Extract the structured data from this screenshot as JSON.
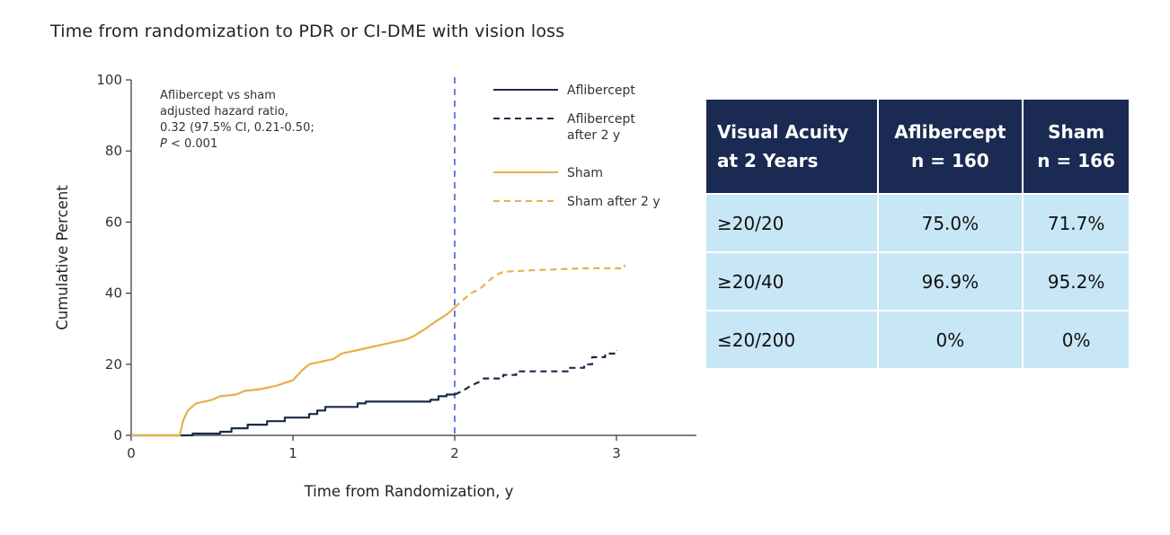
{
  "page_title": "Time from randomization to PDR or CI-DME with vision loss",
  "chart_data": {
    "type": "line",
    "xlabel": "Time from Randomization, y",
    "ylabel": "Cumulative Percent",
    "xlim": [
      0,
      3.5
    ],
    "ylim": [
      0,
      100
    ],
    "x_ticks": [
      "0",
      "1",
      "2",
      "3"
    ],
    "y_ticks": [
      "0",
      "20",
      "40",
      "60",
      "80",
      "100"
    ],
    "grid": false,
    "reference_line_x": 2,
    "annotation": {
      "lines": [
        "Aflibercept vs sham",
        "adjusted hazard ratio,",
        "0.32 (97.5% CI, 0.21-0.50;"
      ],
      "p_label": "P",
      "p_rest": " < 0.001"
    },
    "legend_position": "top-right",
    "series": [
      {
        "name": "Aflibercept",
        "color": "#1b2a4a",
        "dash": "solid",
        "points": [
          [
            0,
            0
          ],
          [
            0.38,
            0
          ],
          [
            0.38,
            0.5
          ],
          [
            0.55,
            0.5
          ],
          [
            0.55,
            1
          ],
          [
            0.62,
            1
          ],
          [
            0.62,
            2
          ],
          [
            0.72,
            2
          ],
          [
            0.72,
            3
          ],
          [
            0.84,
            3
          ],
          [
            0.84,
            4
          ],
          [
            0.95,
            4
          ],
          [
            0.95,
            5
          ],
          [
            1.1,
            5
          ],
          [
            1.1,
            6
          ],
          [
            1.15,
            6
          ],
          [
            1.15,
            7
          ],
          [
            1.2,
            7
          ],
          [
            1.2,
            8
          ],
          [
            1.4,
            8
          ],
          [
            1.4,
            9
          ],
          [
            1.45,
            9
          ],
          [
            1.45,
            9.5
          ],
          [
            1.85,
            9.5
          ],
          [
            1.85,
            10
          ],
          [
            1.9,
            10
          ],
          [
            1.9,
            11
          ],
          [
            1.95,
            11
          ],
          [
            1.95,
            11.5
          ],
          [
            2.0,
            11.5
          ]
        ]
      },
      {
        "name": "Aflibercept after 2 y",
        "color": "#1b2a4a",
        "dash": "dashed",
        "points": [
          [
            2.0,
            11.5
          ],
          [
            2.05,
            12.5
          ],
          [
            2.1,
            14
          ],
          [
            2.15,
            15
          ],
          [
            2.18,
            16
          ],
          [
            2.3,
            16
          ],
          [
            2.3,
            17
          ],
          [
            2.38,
            17
          ],
          [
            2.38,
            18
          ],
          [
            2.7,
            18
          ],
          [
            2.7,
            19
          ],
          [
            2.8,
            19
          ],
          [
            2.8,
            20
          ],
          [
            2.85,
            20
          ],
          [
            2.85,
            22
          ],
          [
            2.93,
            22
          ],
          [
            2.93,
            23
          ],
          [
            3.0,
            23
          ],
          [
            3.0,
            24
          ]
        ]
      },
      {
        "name": "Sham",
        "color": "#e8b04a",
        "dash": "solid",
        "points": [
          [
            0,
            0
          ],
          [
            0.3,
            0
          ],
          [
            0.32,
            4
          ],
          [
            0.35,
            7
          ],
          [
            0.4,
            9
          ],
          [
            0.45,
            9.5
          ],
          [
            0.5,
            10
          ],
          [
            0.55,
            11
          ],
          [
            0.65,
            11.5
          ],
          [
            0.7,
            12.5
          ],
          [
            0.8,
            13
          ],
          [
            0.9,
            14
          ],
          [
            1.0,
            15.5
          ],
          [
            1.05,
            18
          ],
          [
            1.1,
            20
          ],
          [
            1.15,
            20.5
          ],
          [
            1.25,
            21.5
          ],
          [
            1.3,
            23
          ],
          [
            1.4,
            24
          ],
          [
            1.5,
            25
          ],
          [
            1.6,
            26
          ],
          [
            1.7,
            27
          ],
          [
            1.75,
            28
          ],
          [
            1.82,
            30
          ],
          [
            1.88,
            32
          ],
          [
            1.95,
            34
          ],
          [
            2.0,
            36
          ]
        ]
      },
      {
        "name": "Sham after 2 y",
        "color": "#e8b04a",
        "dash": "dashed",
        "points": [
          [
            2.0,
            36
          ],
          [
            2.05,
            38
          ],
          [
            2.1,
            40
          ],
          [
            2.15,
            41
          ],
          [
            2.2,
            43
          ],
          [
            2.25,
            45
          ],
          [
            2.3,
            46
          ],
          [
            2.5,
            46.5
          ],
          [
            2.8,
            47
          ],
          [
            3.05,
            47
          ],
          [
            3.05,
            48
          ]
        ]
      }
    ]
  },
  "table": {
    "headers": [
      [
        "Visual Acuity",
        "at 2 Years"
      ],
      [
        "Aflibercept",
        "n = 160"
      ],
      [
        "Sham",
        "n = 166"
      ]
    ],
    "rows": [
      [
        "≥20/20",
        "75.0%",
        "71.7%"
      ],
      [
        "≥20/40",
        "96.9%",
        "95.2%"
      ],
      [
        "≤20/200",
        "0%",
        "0%"
      ]
    ]
  }
}
